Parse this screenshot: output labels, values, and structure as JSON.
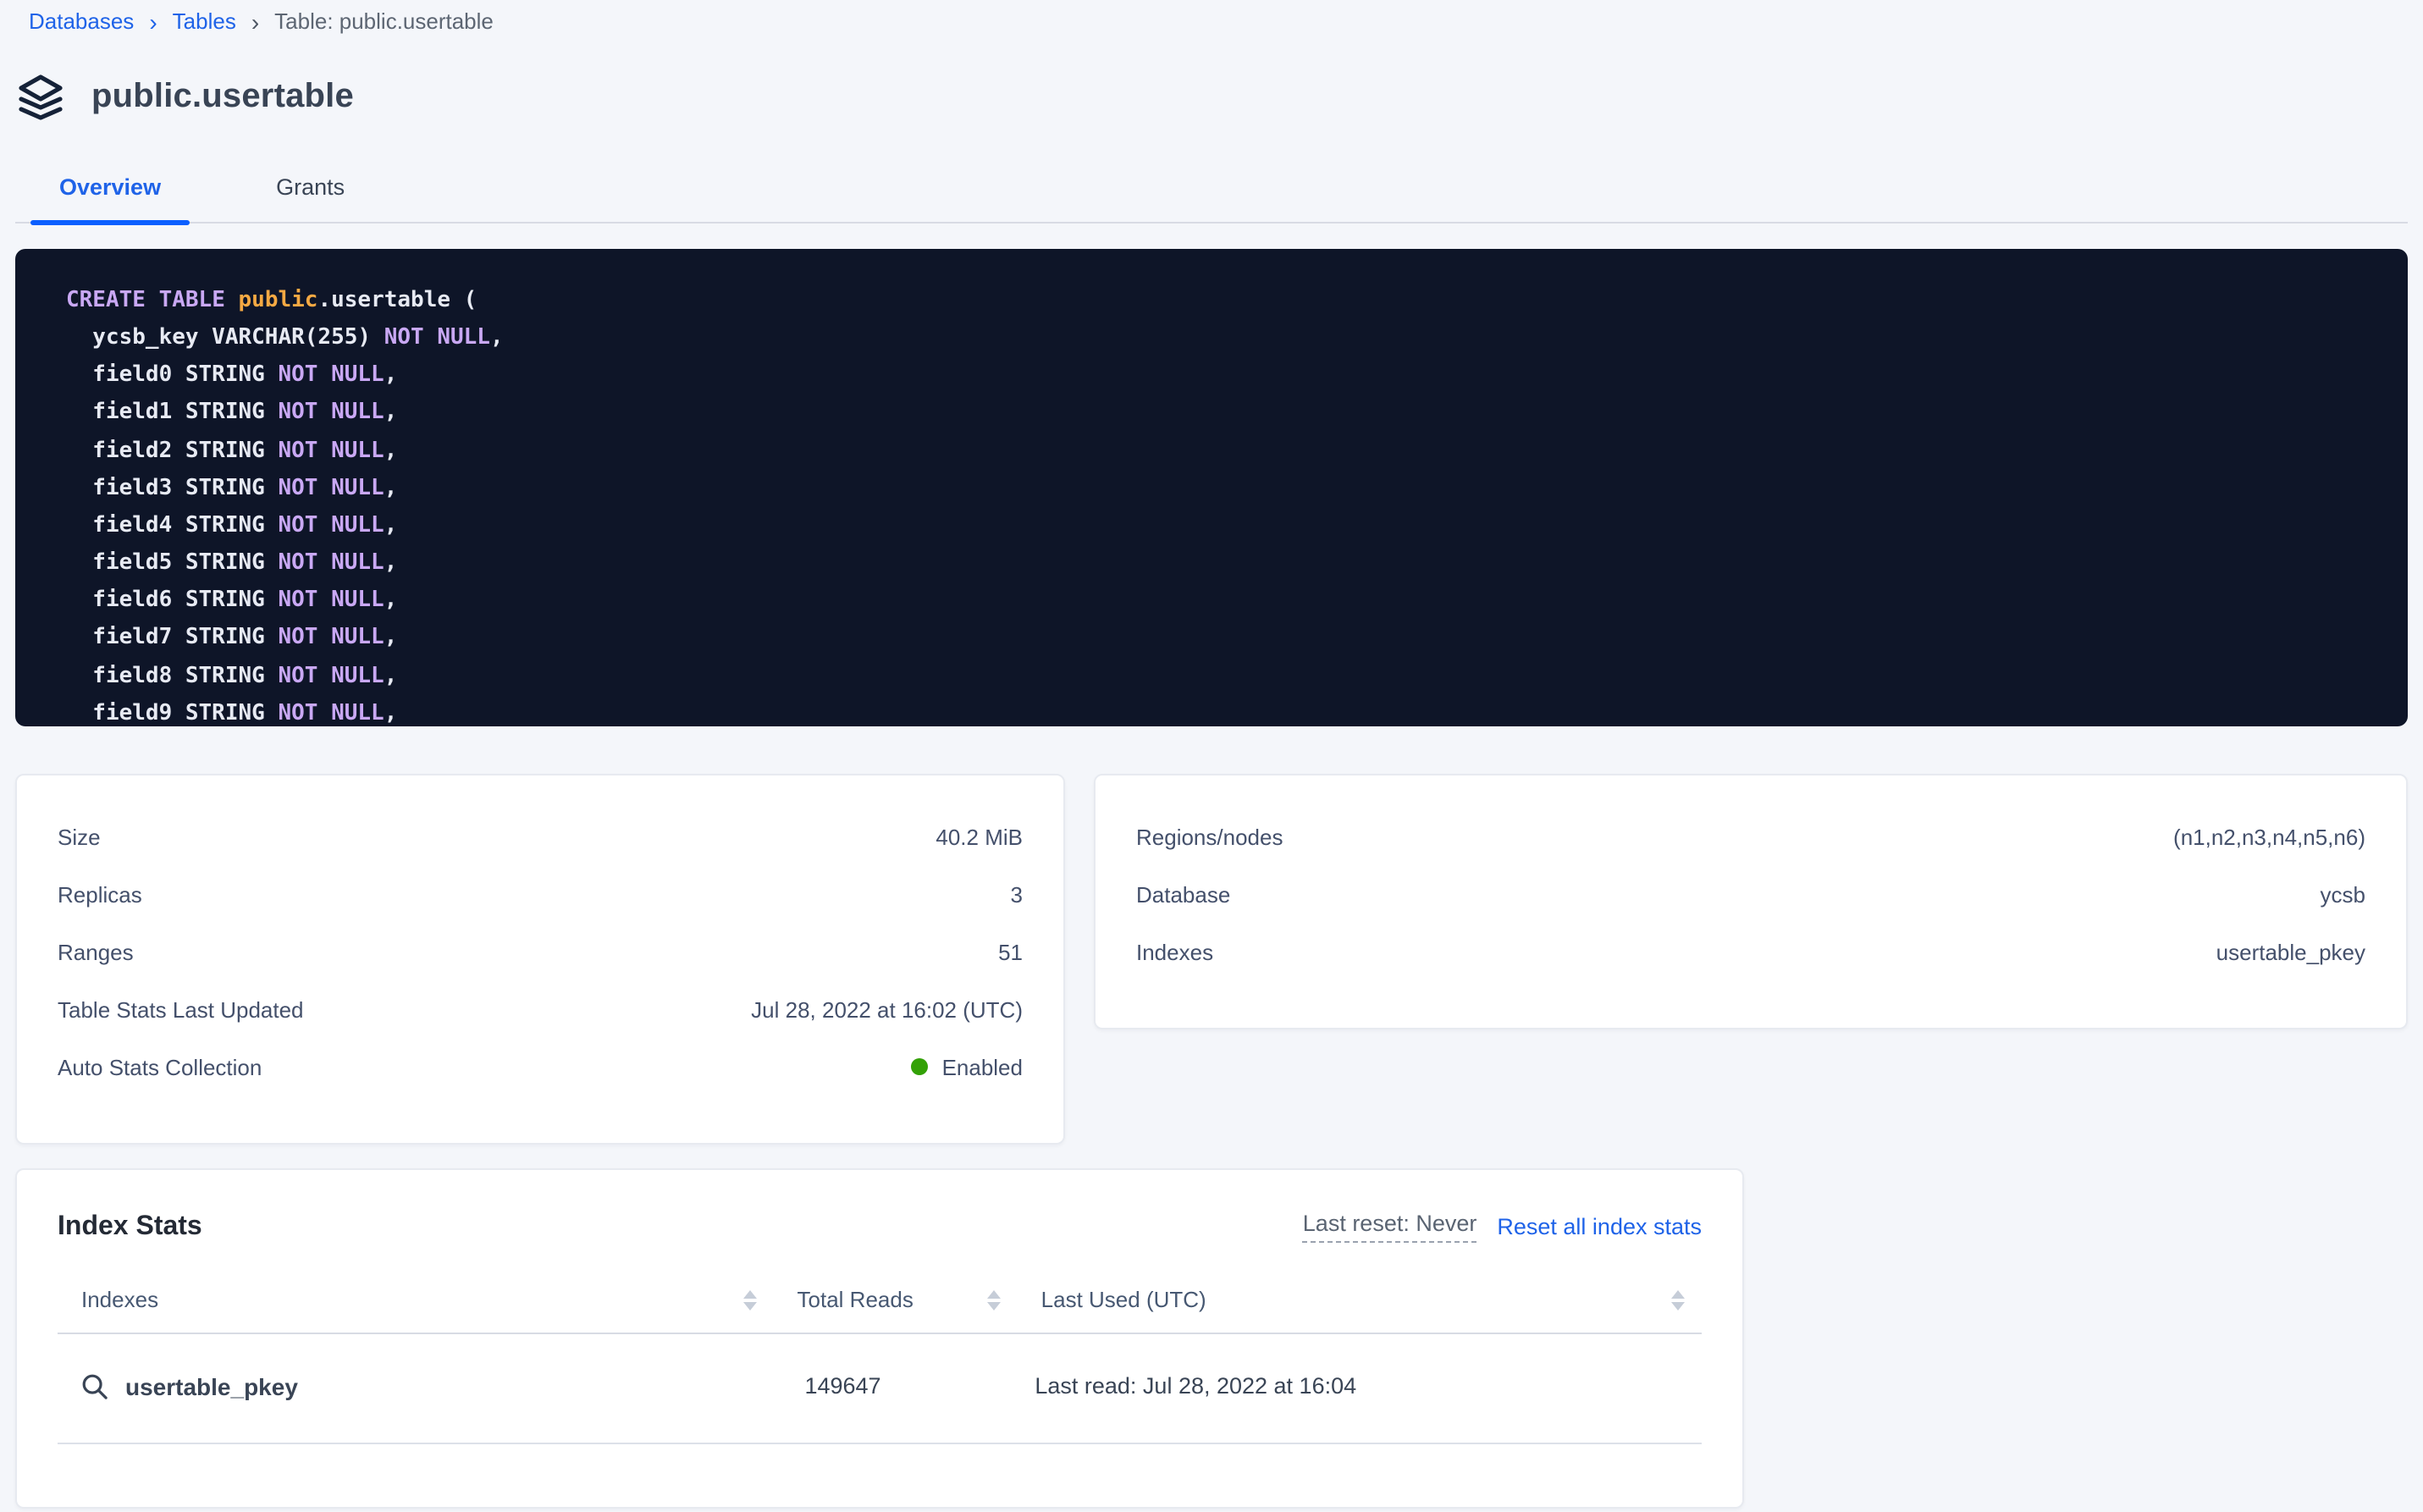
{
  "breadcrumb": {
    "items": [
      {
        "label": "Databases"
      },
      {
        "label": "Tables"
      },
      {
        "label": "Table: public.usertable"
      }
    ]
  },
  "header": {
    "title": "public.usertable"
  },
  "tabs": [
    {
      "label": "Overview",
      "active": true
    },
    {
      "label": "Grants",
      "active": false
    }
  ],
  "sql": {
    "lines": [
      "CREATE TABLE public.usertable (",
      "  ycsb_key VARCHAR(255) NOT NULL,",
      "  field0 STRING NOT NULL,",
      "  field1 STRING NOT NULL,",
      "  field2 STRING NOT NULL,",
      "  field3 STRING NOT NULL,",
      "  field4 STRING NOT NULL,",
      "  field5 STRING NOT NULL,",
      "  field6 STRING NOT NULL,",
      "  field7 STRING NOT NULL,",
      "  field8 STRING NOT NULL,",
      "  field9 STRING NOT NULL,"
    ]
  },
  "stats_left": {
    "rows": [
      {
        "label": "Size",
        "value": "40.2 MiB"
      },
      {
        "label": "Replicas",
        "value": "3"
      },
      {
        "label": "Ranges",
        "value": "51"
      },
      {
        "label": "Table Stats Last Updated",
        "value": "Jul 28, 2022 at 16:02 (UTC)"
      },
      {
        "label": "Auto Stats Collection",
        "value": "Enabled"
      }
    ]
  },
  "stats_right": {
    "rows": [
      {
        "label": "Regions/nodes",
        "value": "(n1,n2,n3,n4,n5,n6)"
      },
      {
        "label": "Database",
        "value": "ycsb"
      },
      {
        "label": "Indexes",
        "value": "usertable_pkey"
      }
    ]
  },
  "index_stats": {
    "title": "Index Stats",
    "last_reset": "Last reset: Never",
    "reset_link": "Reset all index stats",
    "columns": [
      "Indexes",
      "Total Reads",
      "Last Used (UTC)"
    ],
    "rows": [
      {
        "name": "usertable_pkey",
        "total_reads": "149647",
        "last_used": "Last read: Jul 28, 2022 at 16:04"
      }
    ]
  },
  "colors": {
    "link_blue": "#1f63e8",
    "tab_underline_blue": "#0b5fff",
    "status_green": "#33a106",
    "code_background": "#0e1528",
    "code_keyword": "#c9a8f4",
    "code_schema_orange": "#f5a943"
  }
}
